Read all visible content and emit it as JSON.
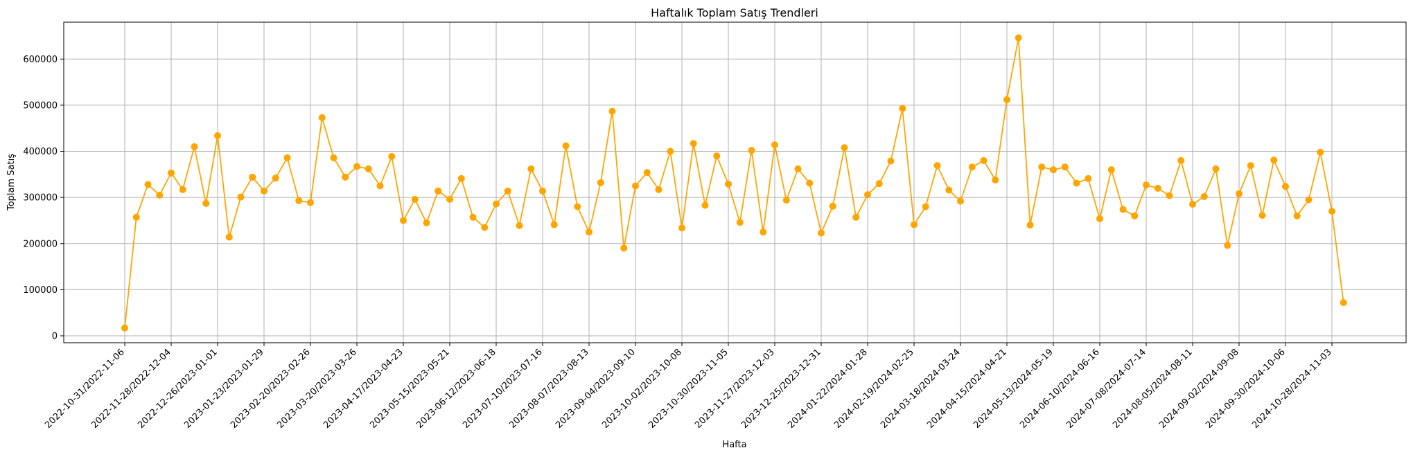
{
  "chart_data": {
    "type": "line",
    "title": "Haftalık Toplam Satış Trendleri",
    "xlabel": "Hafta",
    "ylabel": "Toplam Satış",
    "grid": true,
    "ylim": [
      -15000,
      680000
    ],
    "yticks": [
      0,
      100000,
      200000,
      300000,
      400000,
      500000,
      600000
    ],
    "ytick_labels": [
      "0",
      "100000",
      "200000",
      "300000",
      "400000",
      "500000",
      "600000"
    ],
    "xtick_labels": [
      "2022-10-31/2022-11-06",
      "2022-11-28/2022-12-04",
      "2022-12-26/2023-01-01",
      "2023-01-23/2023-01-29",
      "2023-02-20/2023-02-26",
      "2023-03-20/2023-03-26",
      "2023-04-17/2023-04-23",
      "2023-05-15/2023-05-21",
      "2023-06-12/2023-06-18",
      "2023-07-10/2023-07-16",
      "2023-08-07/2023-08-13",
      "2023-09-04/2023-09-10",
      "2023-10-02/2023-10-08",
      "2023-10-30/2023-11-05",
      "2023-11-27/2023-12-03",
      "2023-12-25/2023-12-31",
      "2024-01-22/2024-01-28",
      "2024-02-19/2024-02-25",
      "2024-03-18/2024-03-24",
      "2024-04-15/2024-04-21",
      "2024-05-13/2024-05-19",
      "2024-06-10/2024-06-16",
      "2024-07-08/2024-07-14",
      "2024-08-05/2024-08-11",
      "2024-09-02/2024-09-08",
      "2024-09-30/2024-10-06",
      "2024-10-28/2024-11-03"
    ],
    "tick_step": 4,
    "series": [
      {
        "color": "#ffa500",
        "values": [
          17000,
          257000,
          328000,
          305000,
          353000,
          317000,
          410000,
          287000,
          434000,
          214000,
          301000,
          344000,
          314000,
          342000,
          386000,
          293000,
          289000,
          473000,
          386000,
          344000,
          367000,
          362000,
          325000,
          389000,
          250000,
          296000,
          245000,
          314000,
          296000,
          341000,
          257000,
          235000,
          286000,
          314000,
          239000,
          362000,
          314000,
          241000,
          412000,
          280000,
          225000,
          332000,
          487000,
          190000,
          325000,
          354000,
          317000,
          400000,
          234000,
          417000,
          283000,
          390000,
          329000,
          246000,
          402000,
          225000,
          414000,
          294000,
          362000,
          331000,
          223000,
          281000,
          408000,
          257000,
          306000,
          330000,
          379000,
          493000,
          241000,
          280000,
          369000,
          316000,
          292000,
          366000,
          380000,
          338000,
          512000,
          646000,
          240000,
          366000,
          360000,
          366000,
          331000,
          341000,
          254000,
          360000,
          274000,
          260000,
          327000,
          320000,
          304000,
          380000,
          285000,
          302000,
          362000,
          196000,
          308000,
          369000,
          261000,
          381000,
          324000,
          260000,
          295000,
          398000,
          270000,
          72000
        ]
      }
    ]
  }
}
